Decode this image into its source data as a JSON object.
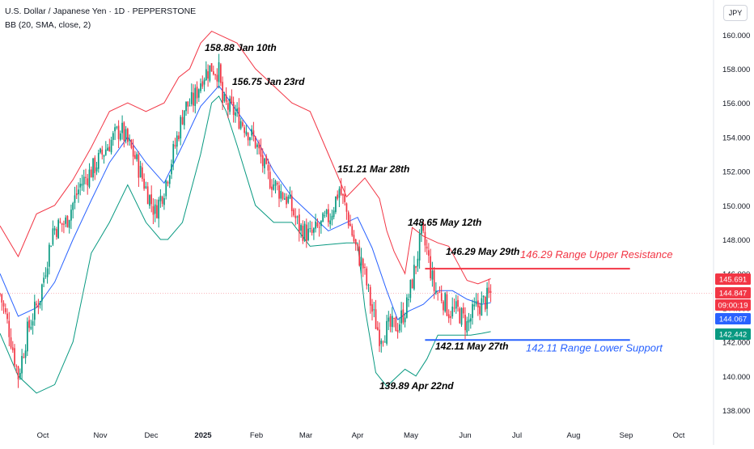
{
  "header": {
    "title": "U.S. Dollar / Japanese Yen · 1D · PEPPERSTONE",
    "indicator": "BB (20, SMA, close, 2)",
    "currency": "JPY"
  },
  "colors": {
    "up": "#089981",
    "down": "#f23645",
    "basis": "#2962ff",
    "upper": "#f23645",
    "lower": "#089981",
    "resistance": "#f23645",
    "support": "#2962ff",
    "axis_text": "#131722"
  },
  "chart_data": {
    "type": "candlestick",
    "x_ticks": [
      "Oct",
      "Nov",
      "Dec",
      "2025",
      "Feb",
      "Mar",
      "Apr",
      "May",
      "Jun",
      "Jul",
      "Aug",
      "Sep",
      "Oct"
    ],
    "y_ticks": [
      "160.000",
      "158.000",
      "156.000",
      "154.000",
      "152.000",
      "150.000",
      "148.000",
      "146.000",
      "144.000",
      "142.000",
      "140.000",
      "138.000"
    ],
    "ylim": [
      137.2,
      161.9
    ],
    "price_keys": [
      [
        0,
        144.8
      ],
      [
        5,
        142.7
      ],
      [
        10,
        140.0
      ],
      [
        15,
        142.6
      ],
      [
        22,
        144.7
      ],
      [
        29,
        148.6
      ],
      [
        36,
        149.0
      ],
      [
        44,
        151.2
      ],
      [
        52,
        152.3
      ],
      [
        59,
        153.5
      ],
      [
        66,
        154.5
      ],
      [
        74,
        152.8
      ],
      [
        80,
        151.0
      ],
      [
        85,
        149.6
      ],
      [
        90,
        151.0
      ],
      [
        96,
        153.5
      ],
      [
        101,
        155.7
      ],
      [
        106,
        156.1
      ],
      [
        111,
        157.6
      ],
      [
        116,
        158.1
      ],
      [
        120,
        157.8
      ],
      [
        122,
        156.0
      ],
      [
        128,
        155.5
      ],
      [
        134,
        154.7
      ],
      [
        140,
        153.7
      ],
      [
        146,
        151.8
      ],
      [
        152,
        151.0
      ],
      [
        158,
        150.3
      ],
      [
        164,
        148.7
      ],
      [
        170,
        148.2
      ],
      [
        176,
        148.8
      ],
      [
        181,
        149.4
      ],
      [
        186,
        151.0
      ],
      [
        190,
        149.6
      ],
      [
        195,
        147.5
      ],
      [
        199,
        146.4
      ],
      [
        204,
        143.8
      ],
      [
        208,
        142.4
      ],
      [
        213,
        142.8
      ],
      [
        218,
        143.0
      ],
      [
        223,
        144.1
      ],
      [
        228,
        146.6
      ],
      [
        231,
        148.3
      ],
      [
        234,
        147.3
      ],
      [
        238,
        145.1
      ],
      [
        242,
        144.7
      ],
      [
        246,
        143.8
      ],
      [
        251,
        143.8
      ],
      [
        256,
        143.0
      ],
      [
        261,
        144.0
      ],
      [
        266,
        144.4
      ],
      [
        269,
        144.8
      ]
    ],
    "bollinger_bands": {
      "basis": [
        [
          0,
          146.0
        ],
        [
          10,
          143.5
        ],
        [
          20,
          144.0
        ],
        [
          30,
          145.5
        ],
        [
          40,
          148.0
        ],
        [
          50,
          150.3
        ],
        [
          60,
          152.5
        ],
        [
          70,
          154.0
        ],
        [
          80,
          152.5
        ],
        [
          90,
          151.3
        ],
        [
          100,
          153.5
        ],
        [
          110,
          155.8
        ],
        [
          120,
          157.0
        ],
        [
          130,
          155.5
        ],
        [
          140,
          154.0
        ],
        [
          150,
          152.0
        ],
        [
          160,
          150.5
        ],
        [
          170,
          149.5
        ],
        [
          180,
          148.5
        ],
        [
          190,
          149.0
        ],
        [
          196,
          149.3
        ],
        [
          204,
          147.5
        ],
        [
          212,
          145.0
        ],
        [
          218,
          143.3
        ],
        [
          224,
          143.8
        ],
        [
          232,
          144.2
        ],
        [
          240,
          145.0
        ],
        [
          248,
          145.0
        ],
        [
          256,
          144.5
        ],
        [
          264,
          144.2
        ],
        [
          269,
          144.3
        ]
      ],
      "upper": [
        [
          0,
          148.8
        ],
        [
          10,
          147.0
        ],
        [
          20,
          149.5
        ],
        [
          30,
          150.0
        ],
        [
          40,
          151.5
        ],
        [
          50,
          153.4
        ],
        [
          60,
          155.5
        ],
        [
          70,
          156.0
        ],
        [
          80,
          155.5
        ],
        [
          90,
          156.0
        ],
        [
          98,
          157.5
        ],
        [
          104,
          158.0
        ],
        [
          110,
          159.5
        ],
        [
          116,
          160.2
        ],
        [
          120,
          160.0
        ],
        [
          130,
          159.5
        ],
        [
          140,
          158.0
        ],
        [
          150,
          157.0
        ],
        [
          160,
          156.0
        ],
        [
          170,
          155.5
        ],
        [
          180,
          153.0
        ],
        [
          190,
          150.5
        ],
        [
          200,
          151.6
        ],
        [
          208,
          150.4
        ],
        [
          212,
          148.5
        ],
        [
          216,
          147.3
        ],
        [
          222,
          146.0
        ],
        [
          226,
          148.7
        ],
        [
          232,
          148.2
        ],
        [
          240,
          147.8
        ],
        [
          246,
          147.6
        ],
        [
          252,
          146.4
        ],
        [
          256,
          145.6
        ],
        [
          262,
          145.4
        ],
        [
          269,
          145.7
        ]
      ],
      "lower": [
        [
          0,
          142.5
        ],
        [
          10,
          140.0
        ],
        [
          20,
          139.0
        ],
        [
          30,
          139.5
        ],
        [
          40,
          142.0
        ],
        [
          50,
          147.2
        ],
        [
          60,
          149.0
        ],
        [
          70,
          151.2
        ],
        [
          80,
          149.0
        ],
        [
          88,
          148.0
        ],
        [
          92,
          148.0
        ],
        [
          100,
          149.0
        ],
        [
          110,
          153.0
        ],
        [
          116,
          156.0
        ],
        [
          120,
          156.4
        ],
        [
          124,
          155.5
        ],
        [
          130,
          153.5
        ],
        [
          140,
          150.0
        ],
        [
          150,
          149.0
        ],
        [
          160,
          149.0
        ],
        [
          170,
          147.6
        ],
        [
          180,
          147.7
        ],
        [
          190,
          147.8
        ],
        [
          196,
          147.8
        ],
        [
          200,
          144.0
        ],
        [
          206,
          140.2
        ],
        [
          212,
          139.4
        ],
        [
          218,
          140.0
        ],
        [
          222,
          140.4
        ],
        [
          228,
          140.0
        ],
        [
          234,
          141.0
        ],
        [
          240,
          142.4
        ],
        [
          246,
          142.4
        ],
        [
          252,
          142.4
        ],
        [
          258,
          142.4
        ],
        [
          264,
          142.5
        ],
        [
          269,
          142.6
        ]
      ]
    },
    "annotations": [
      {
        "text": "158.88 Jan 10th",
        "x": 116,
        "price": 158.88
      },
      {
        "text": "156.75 Jan 23rd",
        "x": 125,
        "price": 156.75
      },
      {
        "text": "151.21 Mar 28th",
        "x": 186,
        "price": 151.21
      },
      {
        "text": "148.65 May 12th",
        "x": 231,
        "price": 148.65
      },
      {
        "text": "146.29 May 29th",
        "x": 245,
        "price": 146.29
      },
      {
        "text": "142.11 May 27th",
        "x": 243,
        "price": 142.11
      },
      {
        "text": "139.89 Apr 22nd",
        "x": 209,
        "price": 139.89
      }
    ],
    "levels": [
      {
        "name": "resistance",
        "label": "146.29 Range Upper Resistance",
        "price": 146.29,
        "x_from": 233,
        "x_to": 332
      },
      {
        "name": "support",
        "label": "142.11 Range Lower Support",
        "price": 142.11,
        "x_from": 233,
        "x_to": 332
      }
    ],
    "price_labels": [
      {
        "text": "145.691",
        "price": 145.691,
        "bg": "#f23645",
        "fg": "#ffffff"
      },
      {
        "text": "144.847",
        "price": 144.847,
        "bg": "#f23645",
        "fg": "#ffffff"
      },
      {
        "text": "09:00:19",
        "price": 144.1,
        "bg": "#f23645",
        "fg": "#ffffff"
      },
      {
        "text": "144.067",
        "price": 143.35,
        "bg": "#2962ff",
        "fg": "#ffffff"
      },
      {
        "text": "142.442",
        "price": 142.442,
        "bg": "#089981",
        "fg": "#ffffff"
      }
    ],
    "last_price": 144.847,
    "grid": false
  }
}
